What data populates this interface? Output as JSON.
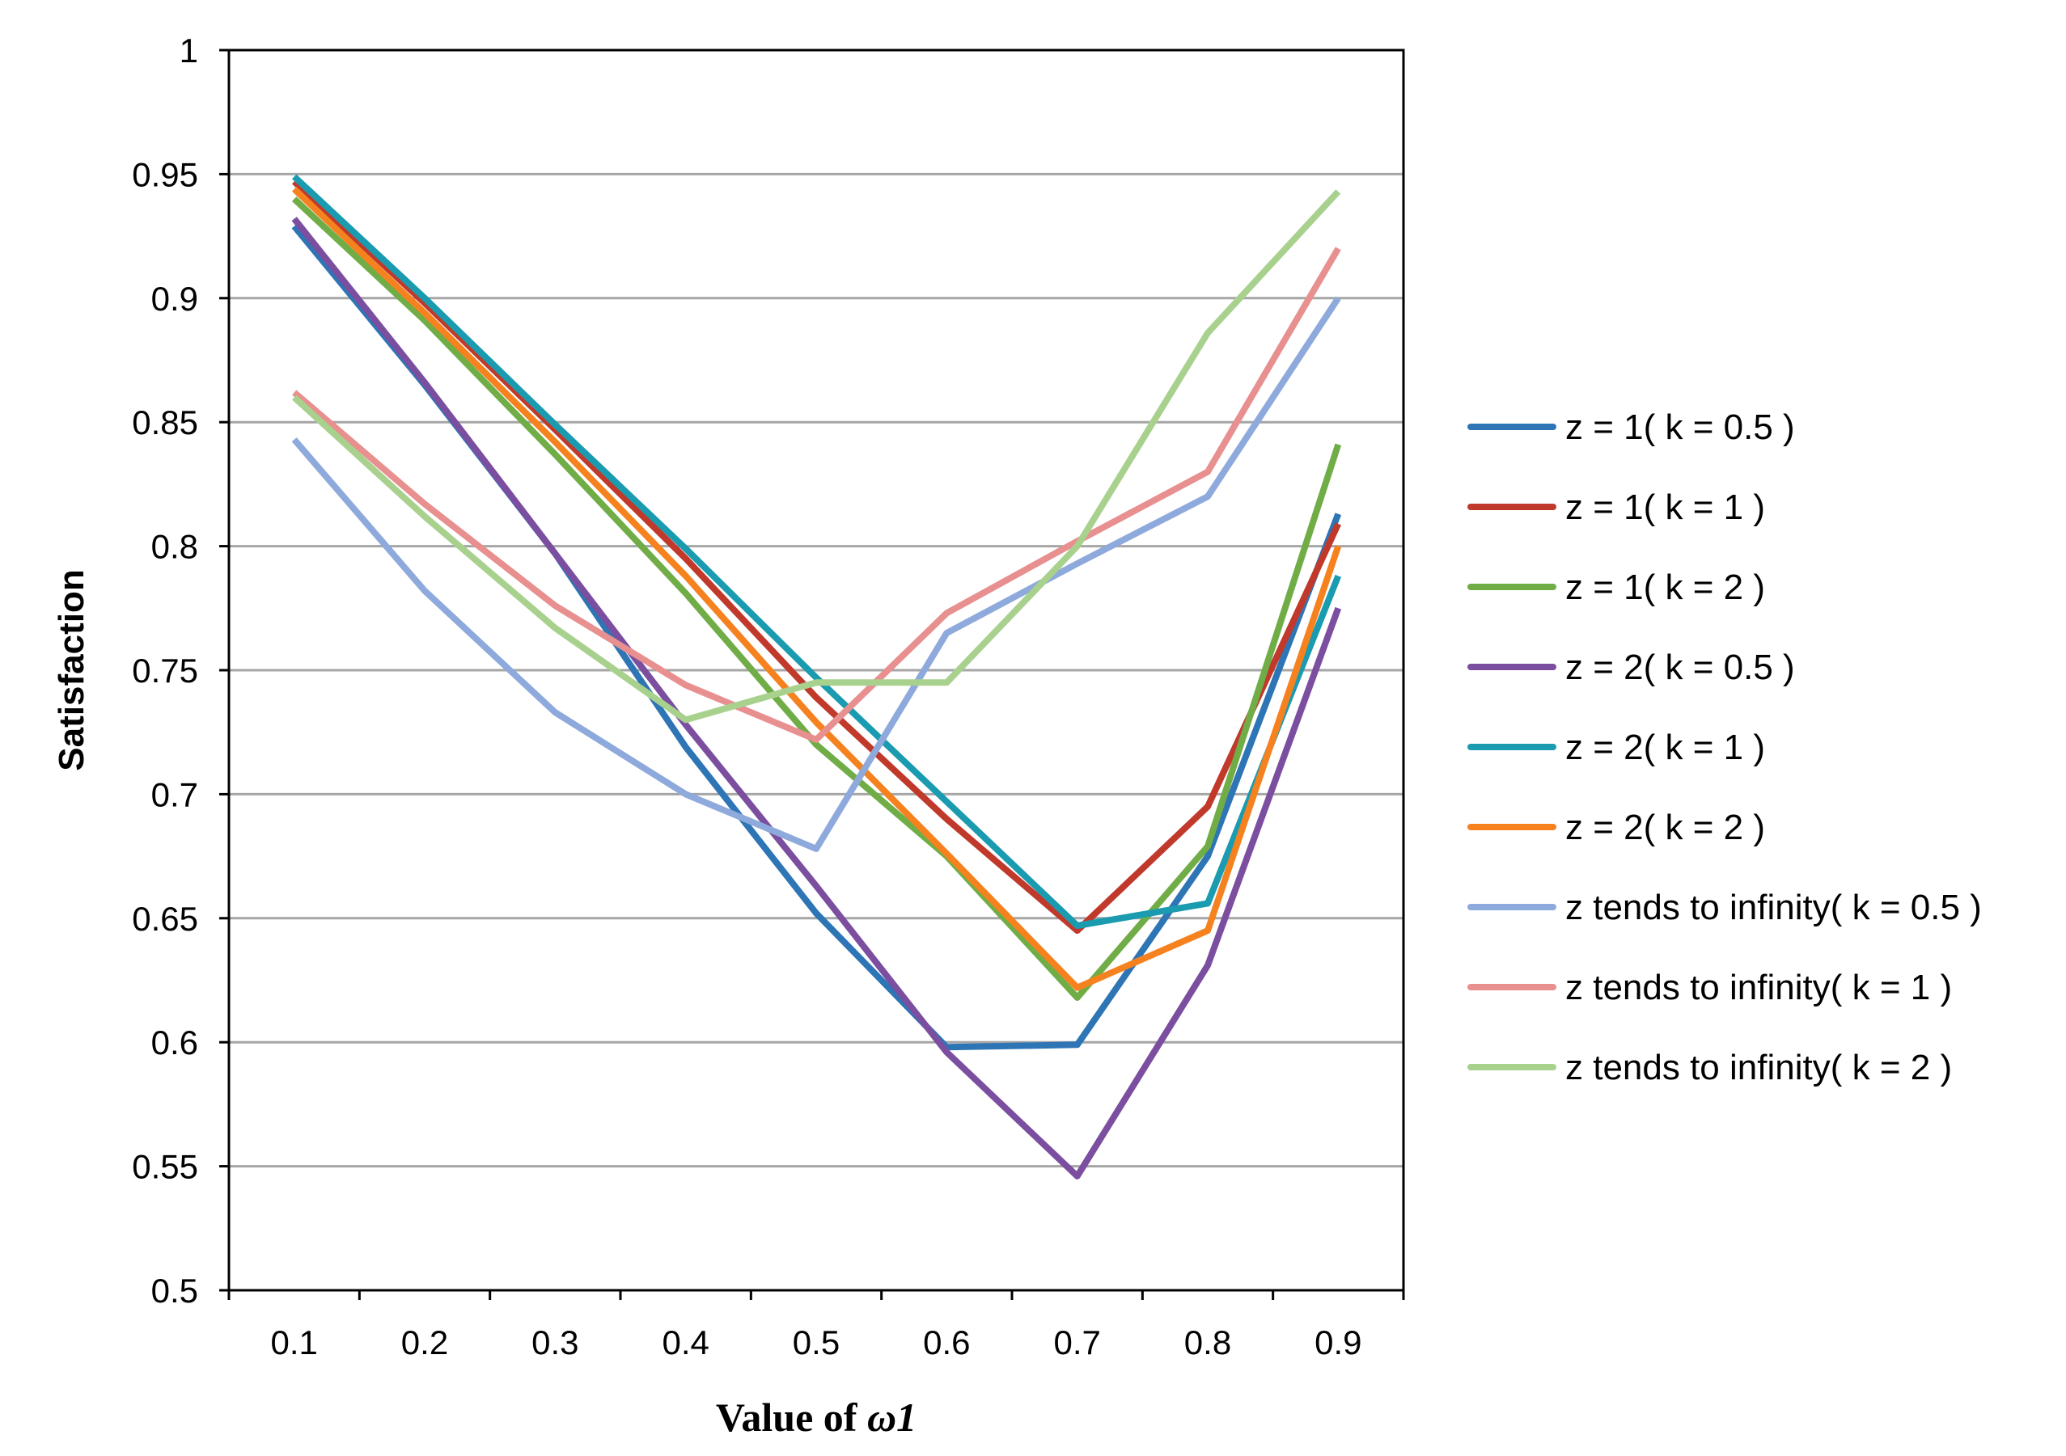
{
  "chart_data": {
    "type": "line",
    "title": "",
    "xlabel": "Value of ",
    "xlabel_symbol": "ω1",
    "ylabel": "Satisfaction",
    "x": [
      0.1,
      0.2,
      0.3,
      0.4,
      0.5,
      0.6,
      0.7,
      0.8,
      0.9
    ],
    "x_tick_labels": [
      "0.1",
      "0.2",
      "0.3",
      "0.4",
      "0.5",
      "0.6",
      "0.7",
      "0.8",
      "0.9"
    ],
    "ylim": [
      0.5,
      1
    ],
    "y_ticks": [
      0.5,
      0.55,
      0.6,
      0.65,
      0.7,
      0.75,
      0.8,
      0.85,
      0.9,
      0.95,
      1
    ],
    "y_tick_labels": [
      "0.5",
      "0.55",
      "0.6",
      "0.65",
      "0.7",
      "0.75",
      "0.8",
      "0.85",
      "0.9",
      "0.95",
      "1"
    ],
    "grid": true,
    "legend_position": "right",
    "series": [
      {
        "name": "z = 1( k = 0.5 )",
        "color": "#2E75B6",
        "values": [
          0.929,
          0.865,
          0.797,
          0.719,
          0.652,
          0.598,
          0.599,
          0.675,
          0.813
        ]
      },
      {
        "name": "z = 1( k = 1 )",
        "color": "#C0392B",
        "values": [
          0.947,
          0.898,
          0.847,
          0.795,
          0.739,
          0.69,
          0.645,
          0.695,
          0.809
        ]
      },
      {
        "name": "z = 1( k = 2 )",
        "color": "#70AD47",
        "values": [
          0.94,
          0.891,
          0.837,
          0.781,
          0.72,
          0.675,
          0.618,
          0.679,
          0.841
        ]
      },
      {
        "name": "z = 2( k = 0.5 )",
        "color": "#7B4EA0",
        "values": [
          0.932,
          0.866,
          0.797,
          0.728,
          0.663,
          0.596,
          0.546,
          0.631,
          0.775
        ]
      },
      {
        "name": "z = 2( k = 1 )",
        "color": "#1A9BB0",
        "values": [
          0.949,
          0.9,
          0.849,
          0.799,
          0.747,
          0.697,
          0.647,
          0.656,
          0.788
        ]
      },
      {
        "name": "z = 2( k = 2 )",
        "color": "#F5821F",
        "values": [
          0.944,
          0.894,
          0.842,
          0.788,
          0.729,
          0.676,
          0.622,
          0.645,
          0.8
        ]
      },
      {
        "name": "z tends to infinity( k = 0.5 )",
        "color": "#8EA9DB",
        "values": [
          0.843,
          0.782,
          0.733,
          0.7,
          0.678,
          0.765,
          0.793,
          0.82,
          0.9
        ]
      },
      {
        "name": "z tends to infinity( k = 1 )",
        "color": "#E88F8F",
        "values": [
          0.862,
          0.817,
          0.776,
          0.744,
          0.722,
          0.773,
          0.802,
          0.83,
          0.92
        ]
      },
      {
        "name": "z tends to infinity( k = 2 )",
        "color": "#A9D18E",
        "values": [
          0.86,
          0.812,
          0.767,
          0.73,
          0.745,
          0.745,
          0.8,
          0.886,
          0.943
        ]
      }
    ]
  }
}
